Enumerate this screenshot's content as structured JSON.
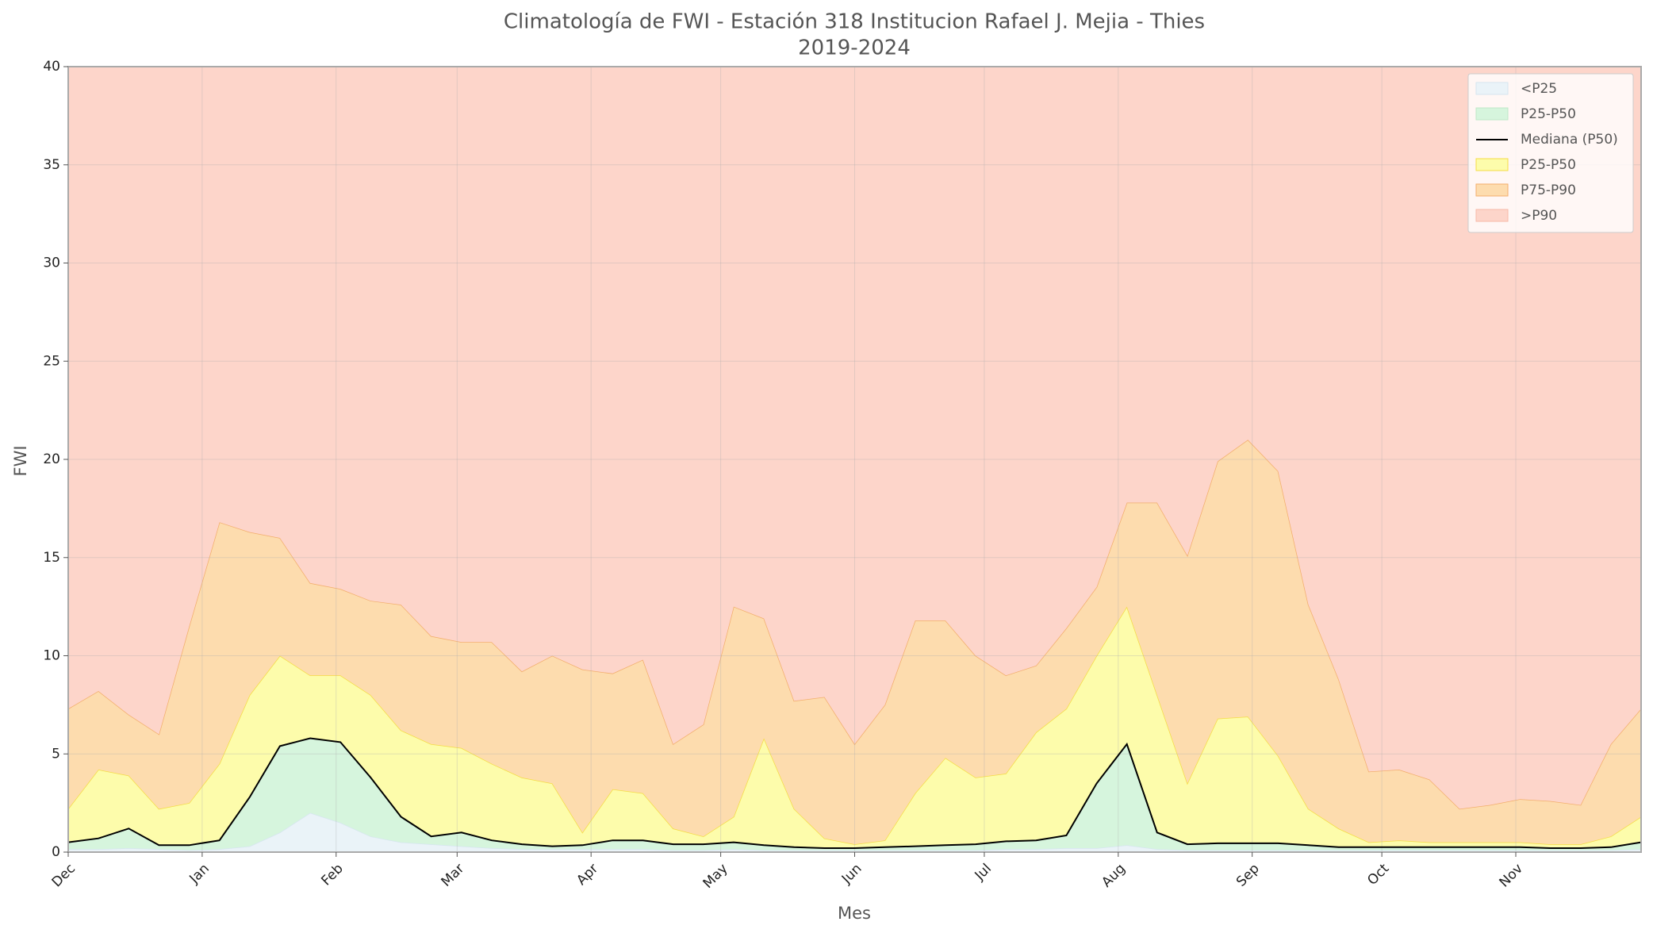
{
  "chart_data": {
    "type": "area",
    "title": "Climatología de FWI - Estación 318 Institucion Rafael J. Mejia - Thies",
    "subtitle": "2019-2024",
    "x_label": "Mes",
    "y_label": "FWI",
    "x": [
      0,
      7,
      14,
      21,
      28,
      35,
      42,
      49,
      56,
      63,
      70,
      77,
      84,
      91,
      98,
      105,
      112,
      119,
      126,
      133,
      140,
      147,
      154,
      161,
      168,
      175,
      182,
      189,
      196,
      203,
      210,
      217,
      224,
      231,
      238,
      245,
      252,
      259,
      266,
      273,
      280,
      287,
      294,
      301,
      308,
      315,
      322,
      329,
      336,
      343,
      350,
      357,
      364
    ],
    "xlim": [
      0,
      364
    ],
    "xticks": [
      {
        "value": 0,
        "label": "Dec"
      },
      {
        "value": 31,
        "label": "Jan"
      },
      {
        "value": 62,
        "label": "Feb"
      },
      {
        "value": 90,
        "label": "Mar"
      },
      {
        "value": 121,
        "label": "Apr"
      },
      {
        "value": 151,
        "label": "May"
      },
      {
        "value": 182,
        "label": "Jun"
      },
      {
        "value": 212,
        "label": "Jul"
      },
      {
        "value": 243,
        "label": "Aug"
      },
      {
        "value": 274,
        "label": "Sep"
      },
      {
        "value": 304,
        "label": "Oct"
      },
      {
        "value": 335,
        "label": "Nov"
      }
    ],
    "ylim": [
      0,
      40
    ],
    "yticks": [
      0,
      5,
      10,
      15,
      20,
      25,
      30,
      35,
      40
    ],
    "grid": true,
    "legend": "upper right",
    "series": [
      {
        "name": "<P25",
        "fill": "#eaf3f8",
        "edge": "#d6e6ef",
        "values": [
          0.15,
          0.15,
          0.2,
          0.15,
          0.1,
          0.15,
          0.3,
          1.0,
          2.0,
          1.5,
          0.8,
          0.5,
          0.4,
          0.3,
          0.2,
          0.15,
          0.15,
          0.15,
          0.15,
          0.15,
          0.1,
          0.1,
          0.15,
          0.1,
          0.1,
          0.1,
          0.1,
          0.1,
          0.1,
          0.1,
          0.1,
          0.15,
          0.15,
          0.2,
          0.2,
          0.35,
          0.15,
          0.1,
          0.1,
          0.1,
          0.1,
          0.1,
          0.1,
          0.1,
          0.1,
          0.1,
          0.1,
          0.1,
          0.1,
          0.1,
          0.1,
          0.1,
          0.15
        ]
      },
      {
        "name": "P25-P50",
        "fill": "#d6f5dd",
        "edge": "#bfe8c8",
        "values": [
          0.5,
          0.7,
          1.2,
          0.35,
          0.35,
          0.6,
          2.8,
          5.4,
          5.8,
          5.6,
          3.8,
          1.8,
          0.8,
          1.0,
          0.6,
          0.4,
          0.3,
          0.35,
          0.6,
          0.6,
          0.4,
          0.4,
          0.5,
          0.35,
          0.25,
          0.2,
          0.2,
          0.25,
          0.3,
          0.35,
          0.4,
          0.55,
          0.6,
          0.85,
          3.5,
          5.5,
          1.0,
          0.4,
          0.45,
          0.45,
          0.45,
          0.35,
          0.25,
          0.25,
          0.25,
          0.25,
          0.25,
          0.25,
          0.25,
          0.2,
          0.2,
          0.25,
          0.5
        ]
      },
      {
        "name": "Mediana (P50)",
        "color": "#000000",
        "values": [
          0.5,
          0.7,
          1.2,
          0.35,
          0.35,
          0.6,
          2.8,
          5.4,
          5.8,
          5.6,
          3.8,
          1.8,
          0.8,
          1.0,
          0.6,
          0.4,
          0.3,
          0.35,
          0.6,
          0.6,
          0.4,
          0.4,
          0.5,
          0.35,
          0.25,
          0.2,
          0.2,
          0.25,
          0.3,
          0.35,
          0.4,
          0.55,
          0.6,
          0.85,
          3.5,
          5.5,
          1.0,
          0.4,
          0.45,
          0.45,
          0.45,
          0.35,
          0.25,
          0.25,
          0.25,
          0.25,
          0.25,
          0.25,
          0.25,
          0.2,
          0.2,
          0.25,
          0.5
        ]
      },
      {
        "name": "P25-P50",
        "fill": "#fdfcab",
        "edge": "#f5dc45",
        "values": [
          2.2,
          4.2,
          3.9,
          2.2,
          2.5,
          4.5,
          8.0,
          10.0,
          9.0,
          9.0,
          8.0,
          6.2,
          5.5,
          5.3,
          4.5,
          3.8,
          3.5,
          1.0,
          3.2,
          3.0,
          1.2,
          0.8,
          1.8,
          5.8,
          2.2,
          0.7,
          0.4,
          0.6,
          3.0,
          4.8,
          3.8,
          4.0,
          6.1,
          7.3,
          10.0,
          12.5,
          8.0,
          3.5,
          6.8,
          6.9,
          4.9,
          2.2,
          1.2,
          0.5,
          0.6,
          0.5,
          0.5,
          0.5,
          0.5,
          0.4,
          0.4,
          0.8,
          1.8
        ]
      },
      {
        "name": "P75-P90",
        "fill": "#fddcae",
        "edge": "#f3ae6c",
        "values": [
          7.3,
          8.2,
          7.0,
          6.0,
          11.5,
          16.8,
          16.3,
          16.0,
          13.7,
          13.4,
          12.8,
          12.6,
          11.0,
          10.7,
          10.7,
          9.2,
          10.0,
          9.3,
          9.1,
          9.8,
          5.5,
          6.5,
          12.5,
          11.9,
          7.7,
          7.9,
          5.5,
          7.5,
          11.8,
          11.8,
          10.0,
          9.0,
          9.5,
          11.4,
          13.5,
          17.8,
          17.8,
          15.1,
          19.9,
          21.0,
          19.4,
          12.6,
          8.8,
          4.1,
          4.2,
          3.7,
          2.2,
          2.4,
          2.7,
          2.6,
          2.4,
          5.5,
          7.3
        ]
      },
      {
        "name": ">P90",
        "fill": "#fdd5ca",
        "edge": "#f7b9a8"
      }
    ]
  }
}
